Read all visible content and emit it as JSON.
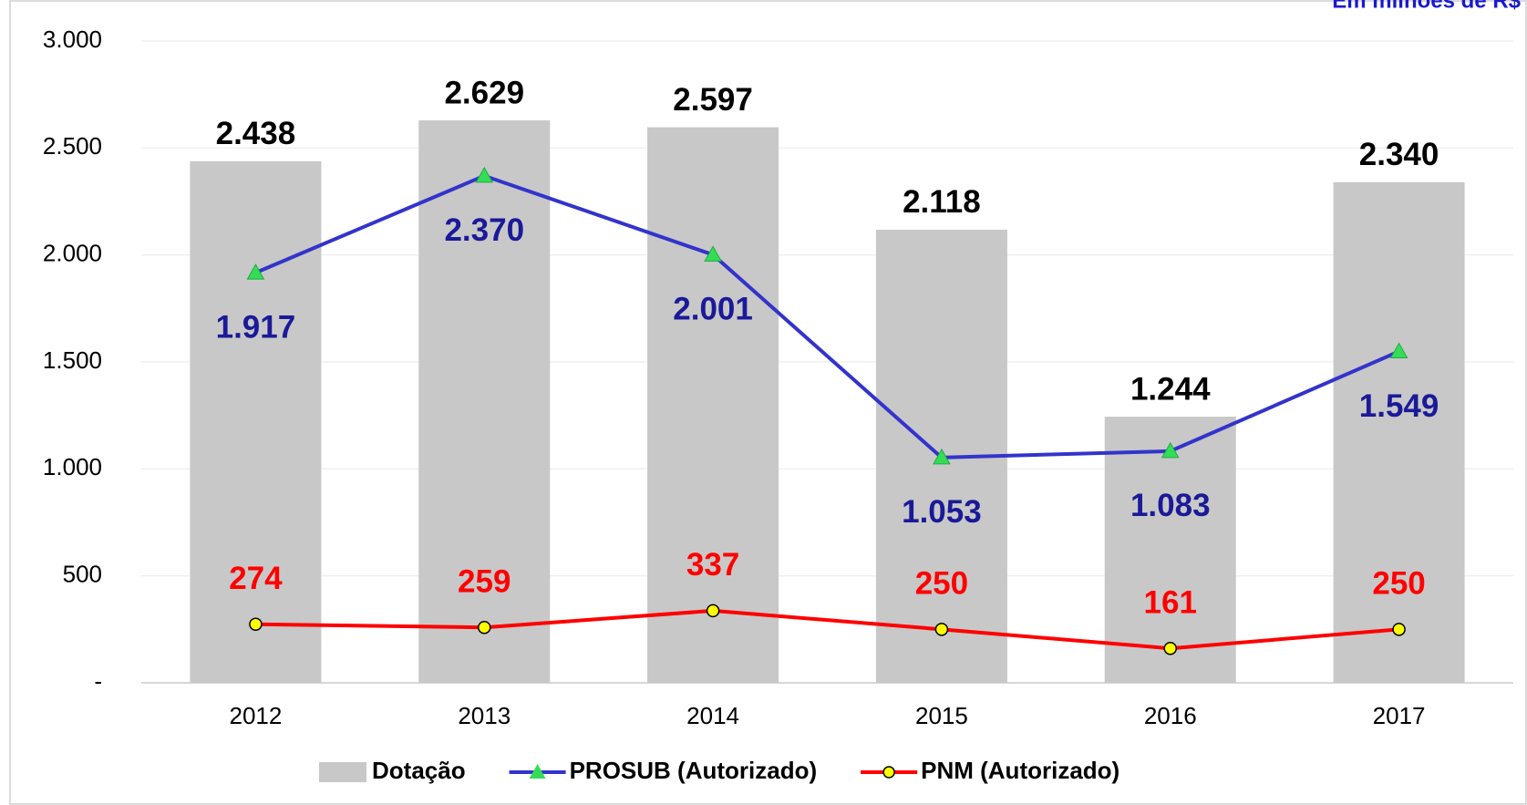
{
  "chart_data": {
    "type": "bar_line",
    "unit_note": "Em milhões de R$",
    "categories": [
      "2012",
      "2013",
      "2014",
      "2015",
      "2016",
      "2017"
    ],
    "series": [
      {
        "name": "Dotação",
        "type": "bar",
        "color": "#c8c8c8",
        "label_color": "#000000",
        "values": [
          2438,
          2629,
          2597,
          2118,
          1244,
          2340
        ],
        "value_labels": [
          "2.438",
          "2.629",
          "2.597",
          "2.118",
          "1.244",
          "2.340"
        ]
      },
      {
        "name": "PROSUB (Autorizado)",
        "type": "line",
        "color": "#3333cc",
        "marker": "triangle",
        "marker_color": "#33dd55",
        "label_color": "#1a1a99",
        "values": [
          1917,
          2370,
          2001,
          1053,
          1083,
          1549
        ],
        "value_labels": [
          "1.917",
          "2.370",
          "2.001",
          "1.053",
          "1.083",
          "1.549"
        ]
      },
      {
        "name": "PNM (Autorizado)",
        "type": "line",
        "color": "#ff0000",
        "marker": "circle",
        "marker_color": "#ffff00",
        "label_color": "#ff0000",
        "values": [
          274,
          259,
          337,
          250,
          161,
          250
        ]
      }
    ],
    "ylim": [
      0,
      3000
    ],
    "yticks": [
      {
        "value": 0,
        "label": "-"
      },
      500,
      {
        "value": 1000,
        "label": "1.000"
      },
      {
        "value": 1500,
        "label": "1.500"
      },
      {
        "value": 2000,
        "label": "2.000"
      },
      {
        "value": 2500,
        "label": "2.500"
      },
      {
        "value": 3000,
        "label": "3.000"
      }
    ],
    "grid": true,
    "legend": "bottom"
  }
}
